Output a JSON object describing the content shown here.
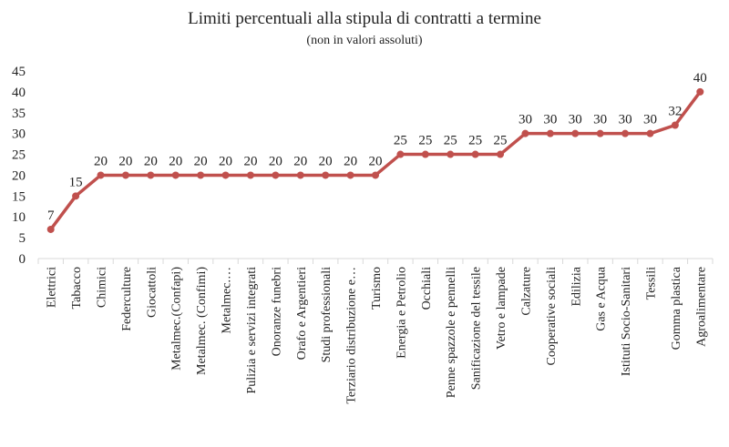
{
  "chart_data": {
    "type": "line",
    "title": "Limiti percentuali alla stipula di contratti a termine",
    "subtitle": "(non in valori assoluti)",
    "xlabel": "",
    "ylabel": "",
    "ylim": [
      0,
      45
    ],
    "yticks": [
      0,
      5,
      10,
      15,
      20,
      25,
      30,
      35,
      40,
      45
    ],
    "grid": false,
    "legend": "none",
    "line_color": "#c0504d",
    "categories": [
      "Elettrici",
      "Tabacco",
      "Chimici",
      "Federculture",
      "Giocattoli",
      "Metalmec.(Confapi)",
      "Metalmec. (Confimi)",
      "Metalmec.…",
      "Pulizia e servizi integrati",
      "Onoranze funebri",
      "Orafo e Argentieri",
      "Studi professionali",
      "Terziario distribuzione e…",
      "Turismo",
      "Energia e Petrolio",
      "Occhiali",
      "Penne spazzole e pennelli",
      "Sanificazione del tessile",
      "Vetro e lampade",
      "Calzature",
      "Cooperative sociali",
      "Edilizia",
      "Gas e Acqua",
      "Istituti Socio-Sanitari",
      "Tessili",
      "Gomma plastica",
      "Agroalimentare"
    ],
    "values": [
      7,
      15,
      20,
      20,
      20,
      20,
      20,
      20,
      20,
      20,
      20,
      20,
      20,
      20,
      25,
      25,
      25,
      25,
      25,
      30,
      30,
      30,
      30,
      30,
      30,
      32,
      40
    ]
  }
}
